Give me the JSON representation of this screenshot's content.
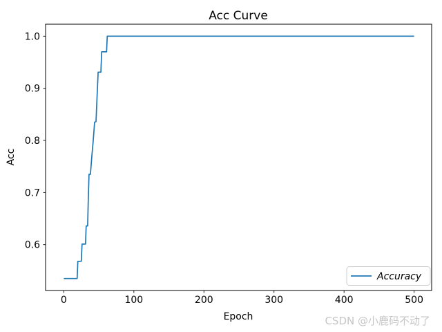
{
  "figure": {
    "background": "#ffffff",
    "watermark": {
      "text": "CSDN @小鹿码不动了",
      "color": "#c6c6c6"
    }
  },
  "chart_data": {
    "type": "line",
    "title": "Acc Curve",
    "xlabel": "Epoch",
    "ylabel": "Acc",
    "xlim": [
      -26,
      525
    ],
    "ylim": [
      0.512,
      1.023
    ],
    "xticks": [
      0,
      100,
      200,
      300,
      400,
      500
    ],
    "yticks": [
      0.6,
      0.7,
      0.8,
      0.9,
      1.0
    ],
    "grid": false,
    "legend": {
      "position": "lower right",
      "entries": [
        {
          "label": "Accuracy",
          "color": "#1f77b4",
          "style": "italic"
        }
      ]
    },
    "series": [
      {
        "name": "Accuracy",
        "color": "#1f77b4",
        "line_width": 1.7,
        "points": [
          [
            0,
            0.535
          ],
          [
            19,
            0.535
          ],
          [
            20,
            0.568
          ],
          [
            25,
            0.568
          ],
          [
            26,
            0.601
          ],
          [
            31,
            0.601
          ],
          [
            32,
            0.636
          ],
          [
            34,
            0.636
          ],
          [
            35,
            0.69
          ],
          [
            36,
            0.735
          ],
          [
            38,
            0.735
          ],
          [
            40,
            0.77
          ],
          [
            42,
            0.8
          ],
          [
            44,
            0.835
          ],
          [
            46,
            0.836
          ],
          [
            47,
            0.87
          ],
          [
            49,
            0.931
          ],
          [
            53,
            0.931
          ],
          [
            54,
            0.97
          ],
          [
            61,
            0.97
          ],
          [
            62,
            1.0
          ],
          [
            500,
            1.0
          ]
        ]
      }
    ]
  }
}
